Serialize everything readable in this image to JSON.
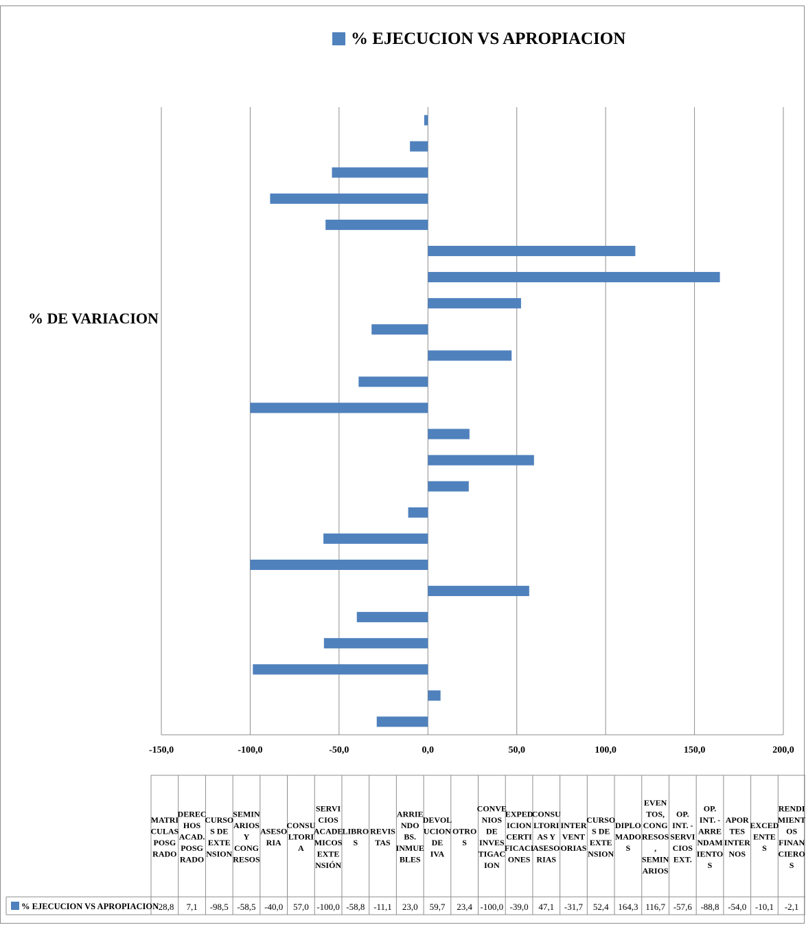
{
  "chart_data": {
    "type": "bar",
    "orientation": "horizontal",
    "title": "% EJECUCION VS APROPIACION",
    "ylabel": "% DE VARIACION",
    "xlim": [
      -150,
      200
    ],
    "xticks": [
      "-150,0",
      "-100,0",
      "-50,0",
      "0,0",
      "50,0",
      "100,0",
      "150,0",
      "200,0"
    ],
    "grid": true,
    "legend_position": "top",
    "bar_color": "#4f81bd",
    "series": [
      {
        "name": "% EJECUCION VS APROPIACION",
        "values": [
          -28.8,
          7.1,
          -98.5,
          -58.5,
          -40.0,
          57.0,
          -100.0,
          -58.8,
          -11.1,
          23.0,
          59.7,
          23.4,
          -100.0,
          -39.0,
          47.1,
          -31.7,
          52.4,
          164.3,
          116.7,
          -57.6,
          -88.8,
          -54.0,
          -10.1,
          -2.1
        ],
        "value_labels": [
          "-28,8",
          "7,1",
          "-98,5",
          "-58,5",
          "-40,0",
          "57,0",
          "-100,0",
          "-58,8",
          "-11,1",
          "23,0",
          "59,7",
          "23,4",
          "-100,0",
          "-39,0",
          "47,1",
          "-31,7",
          "52,4",
          "164,3",
          "116,7",
          "-57,6",
          "-88,8",
          "-54,0",
          "-10,1",
          "-2,1"
        ]
      }
    ],
    "categories": [
      [
        "MATRI",
        "CULAS",
        "POSG",
        "RADO"
      ],
      [
        "DEREC",
        "HOS",
        "ACAD.",
        "POSG",
        "RADO"
      ],
      [
        "CURSO",
        "S DE",
        "EXTE",
        "NSION"
      ],
      [
        "SEMIN",
        "ARIOS",
        "Y",
        "CONG",
        "RESOS"
      ],
      [
        "ASESO",
        "RIA"
      ],
      [
        "CONSU",
        "LTORI",
        "A"
      ],
      [
        "SERVI",
        "CIOS",
        "ACADE",
        "MICOS",
        "EXTE",
        "NSIÓN"
      ],
      [
        "LIBRO",
        "S"
      ],
      [
        "REVIS",
        "TAS"
      ],
      [
        "ARRIE",
        "NDO",
        "BS.",
        "INMUE",
        "BLES"
      ],
      [
        "DEVOL",
        "UCION",
        "DE",
        "IVA"
      ],
      [
        "OTRO",
        "S"
      ],
      [
        "CONVE",
        "NIOS",
        "DE",
        "INVES",
        "TIGAC",
        "ION"
      ],
      [
        "EXPED",
        "ICION",
        "CERTI",
        "FICACI",
        "ONES"
      ],
      [
        "CONSU",
        "LTORI",
        "AS Y",
        "ASESO",
        "RIAS"
      ],
      [
        "INTER",
        "VENT",
        "ORIAS"
      ],
      [
        "CURSO",
        "S DE",
        "EXTE",
        "NSION"
      ],
      [
        "DIPLO",
        "MADO",
        "S"
      ],
      [
        "EVEN",
        "TOS,",
        "CONG",
        "RESOS",
        ",",
        "SEMIN",
        "ARIOS"
      ],
      [
        "OP.",
        "INT. -",
        "SERVI",
        "CIOS",
        "EXT."
      ],
      [
        "OP.",
        "INT. -",
        "ARRE",
        "NDAM",
        "IENTO",
        "S"
      ],
      [
        "APOR",
        "TES",
        "INTER",
        "NOS"
      ],
      [
        "EXCED",
        "ENTE",
        "S"
      ],
      [
        "RENDI",
        "MIENT",
        "OS",
        "FINAN",
        "CIERO",
        "S"
      ]
    ]
  }
}
